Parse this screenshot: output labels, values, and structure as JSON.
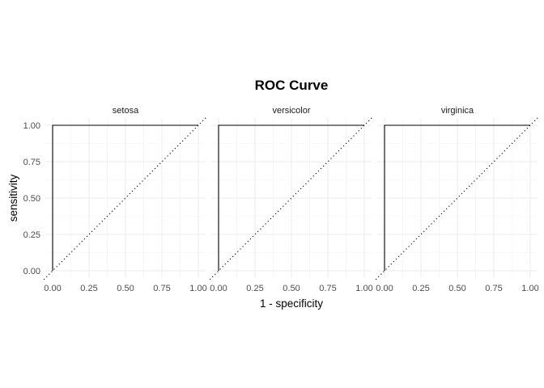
{
  "chart_data": {
    "type": "line",
    "title": "ROC Curve",
    "xlabel": "1 - specificity",
    "ylabel": "sensitivity",
    "xlim": [
      0,
      1
    ],
    "ylim": [
      0,
      1
    ],
    "x_ticks": [
      "0.00",
      "0.25",
      "0.50",
      "0.75",
      "1.00"
    ],
    "y_ticks": [
      "0.00",
      "0.25",
      "0.50",
      "0.75",
      "1.00"
    ],
    "grid": true,
    "reference_line": "diagonal dotted y = x",
    "facets": [
      {
        "name": "setosa",
        "x": [
          0,
          0,
          1
        ],
        "y": [
          0,
          1,
          1
        ]
      },
      {
        "name": "versicolor",
        "x": [
          0,
          0,
          1
        ],
        "y": [
          0,
          1,
          1
        ]
      },
      {
        "name": "virginica",
        "x": [
          0,
          0,
          1
        ],
        "y": [
          0,
          1,
          1
        ]
      }
    ],
    "colors": {
      "curve": "#000000",
      "grid": "#ebebeb",
      "reference": "#000000"
    }
  }
}
